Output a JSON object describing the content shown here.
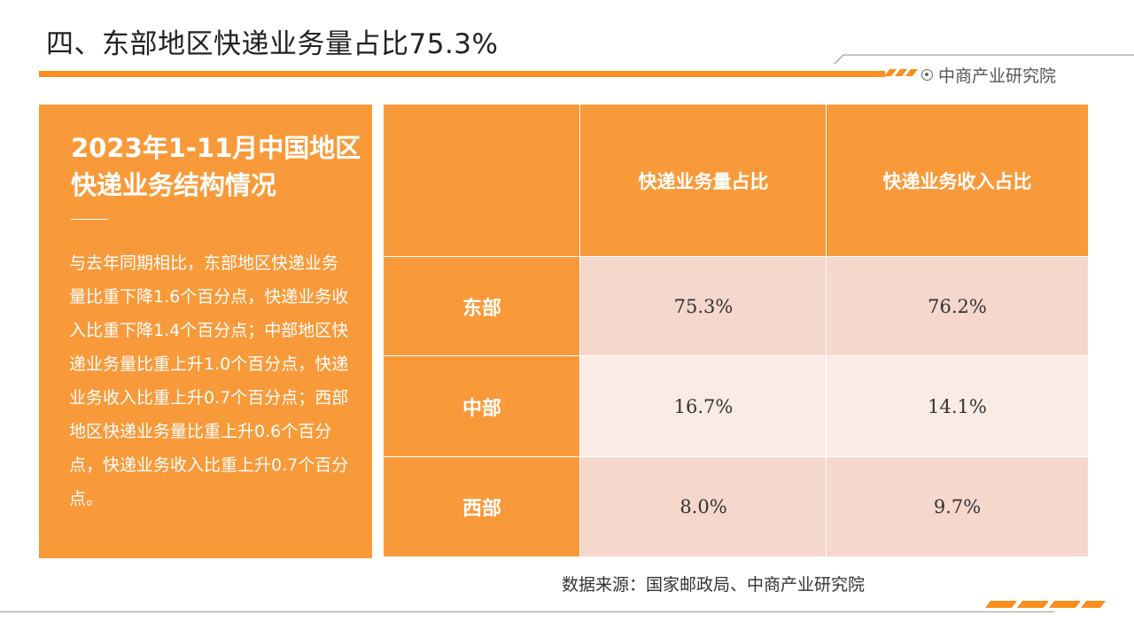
{
  "page": {
    "title": "四、东部地区快递业务量占比75.3%",
    "brand": "中商产业研究院",
    "source": "数据来源：国家邮政局、中商产业研究院"
  },
  "panel": {
    "title": "2023年1-11月中国地区快递业务结构情况",
    "body": "与去年同期相比，东部地区快递业务量比重下降1.6个百分点，快递业务收入比重下降1.4个百分点；中部地区快递业务量比重上升1.0个百分点，快递业务收入比重上升0.7个百分点；西部地区快递业务量比重上升0.6个百分点，快递业务收入比重上升0.7个百分点。"
  },
  "table": {
    "corner": "",
    "columns": [
      "快递业务量占比",
      "快递业务收入占比"
    ],
    "rows": [
      {
        "label": "东部",
        "volume": "75.3%",
        "revenue": "76.2%"
      },
      {
        "label": "中部",
        "volume": "16.7%",
        "revenue": "14.1%"
      },
      {
        "label": "西部",
        "volume": "8.0%",
        "revenue": "9.7%"
      }
    ]
  },
  "colors": {
    "accent_orange": "#f7901e",
    "panel_orange": "#f89a3a",
    "row_band_dark": "#f6d7cc",
    "row_band_light": "#faebe5"
  },
  "icons": [
    "brand-logo-icon"
  ]
}
